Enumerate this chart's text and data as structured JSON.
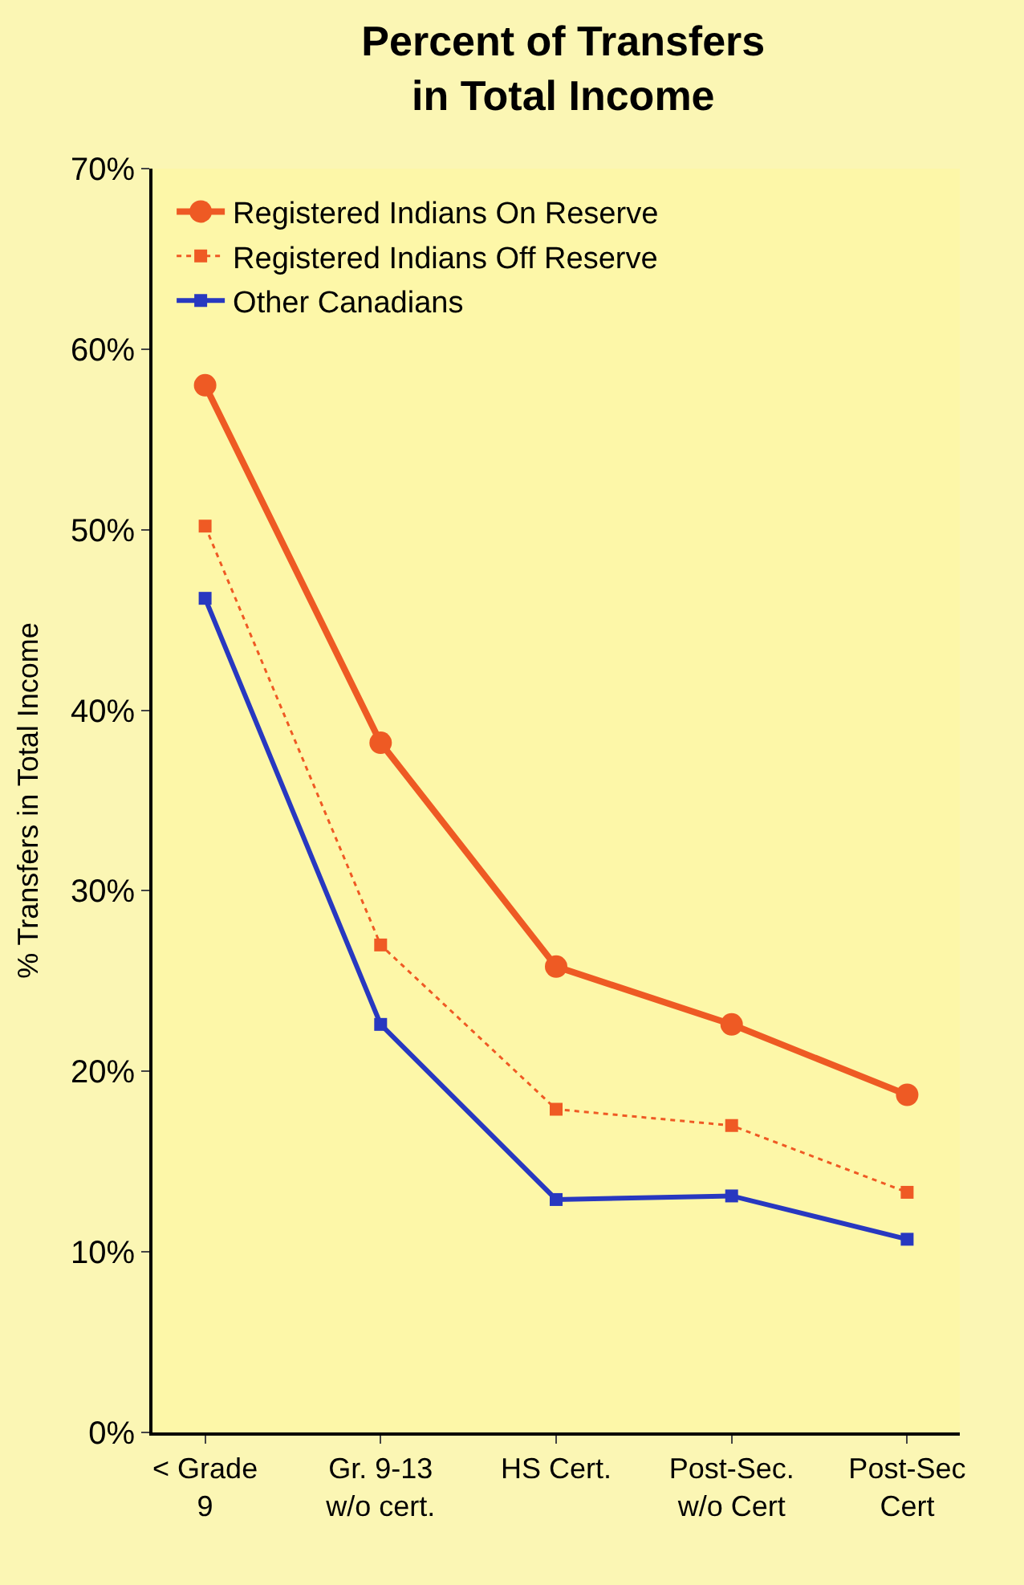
{
  "chart_data": {
    "type": "line",
    "title": "Percent of Transfers\nin Total Income",
    "ylabel": "% Transfers in Total Income",
    "categories": [
      "< Grade\n9",
      "Gr. 9-13\nw/o cert.",
      "HS Cert.",
      "Post-Sec.\nw/o Cert",
      "Post-Sec\nCert"
    ],
    "series": [
      {
        "name": "Registered Indians On Reserve",
        "color": "#ee5a24",
        "marker": "circle",
        "line_style": "solid",
        "values": [
          0.58,
          0.382,
          0.258,
          0.226,
          0.187
        ]
      },
      {
        "name": "Registered Indians Off Reserve",
        "color": "#ef5a24",
        "marker": "square",
        "line_style": "dotted",
        "values": [
          0.502,
          0.27,
          0.179,
          0.17,
          0.133
        ]
      },
      {
        "name": "Other Canadians",
        "color": "#2838c0",
        "marker": "square",
        "line_style": "solid",
        "values": [
          0.462,
          0.226,
          0.129,
          0.131,
          0.107
        ]
      }
    ],
    "ylim": [
      0,
      0.7
    ],
    "yticks": [
      {
        "value": 0,
        "label": "0%"
      },
      {
        "value": 0.1,
        "label": "10%"
      },
      {
        "value": 0.2,
        "label": "20%"
      },
      {
        "value": 0.3,
        "label": "30%"
      },
      {
        "value": 0.4,
        "label": "40%"
      },
      {
        "value": 0.5,
        "label": "50%"
      },
      {
        "value": 0.6,
        "label": "60%"
      },
      {
        "value": 0.7,
        "label": "70%"
      }
    ],
    "grid": false,
    "legend": "top left"
  }
}
